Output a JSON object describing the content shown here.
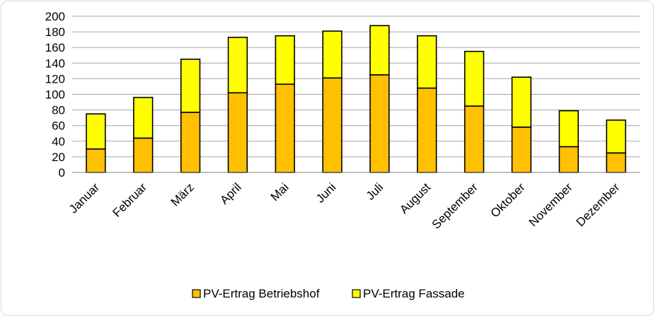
{
  "chart_data": {
    "type": "bar",
    "stacked": true,
    "title": "",
    "xlabel": "",
    "ylabel": "",
    "ylim": [
      0,
      200
    ],
    "ytick_step": 20,
    "grid": true,
    "legend_position": "bottom",
    "categories": [
      "Januar",
      "Februar",
      "März",
      "April",
      "Mai",
      "Juni",
      "Juli",
      "August",
      "September",
      "Oktober",
      "November",
      "Dezember"
    ],
    "series": [
      {
        "name": "PV-Ertrag Betriebshof",
        "color": "#FFC000",
        "values": [
          30,
          44,
          77,
          102,
          113,
          121,
          125,
          108,
          85,
          58,
          33,
          25
        ]
      },
      {
        "name": "PV-Ertrag Fassade",
        "color": "#FFFF00",
        "values": [
          45,
          52,
          68,
          71,
          62,
          60,
          63,
          67,
          70,
          64,
          46,
          42
        ]
      }
    ]
  }
}
